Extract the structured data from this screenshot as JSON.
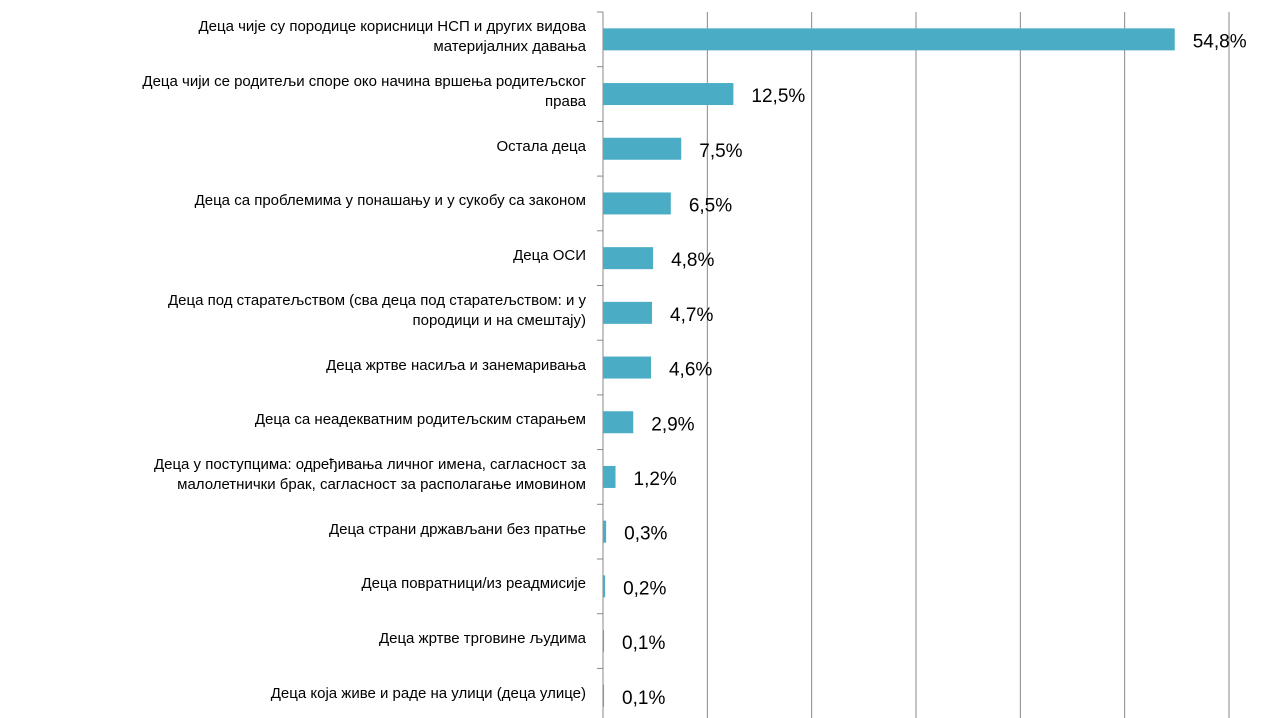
{
  "chart_data": {
    "type": "hbar",
    "categories": [
      "Деца чије су породице корисници НСП и других видова\nматеријалних давања",
      "Деца чији се родитељи споре око начина вршења родитељског\nправа",
      "Остала деца",
      "Деца са проблемима у понашању и у сукобу са законом",
      "Деца ОСИ",
      "Деца под старатељством (сва деца под старатељством: и у\nпородици и на смештају)",
      "Деца жртве насиља и занемаривања",
      "Деца са неадекватним родитељским старањем",
      "Деца у поступцима: одређивања личног имена, сагласност за\nмалолетнички брак, сагласност за располагање имовином",
      "Деца страни држављани без пратње",
      "Деца повратници/из реадмисије",
      "Деца жртве трговине људима",
      "Деца која живе и раде на улици (деца улице)"
    ],
    "values": [
      54.8,
      12.5,
      7.5,
      6.5,
      4.8,
      4.7,
      4.6,
      2.9,
      1.2,
      0.3,
      0.2,
      0.1,
      0.1
    ],
    "value_labels": [
      "54,8%",
      "12,5%",
      "7,5%",
      "6,5%",
      "4,8%",
      "4,7%",
      "4,6%",
      "2,9%",
      "1,2%",
      "0,3%",
      "0,2%",
      "0,1%",
      "0,1%"
    ],
    "color": "#4bacc6",
    "xlim": [
      0,
      60
    ],
    "xticks": [
      0,
      10,
      20,
      30,
      40,
      50,
      60
    ],
    "grid": true
  }
}
